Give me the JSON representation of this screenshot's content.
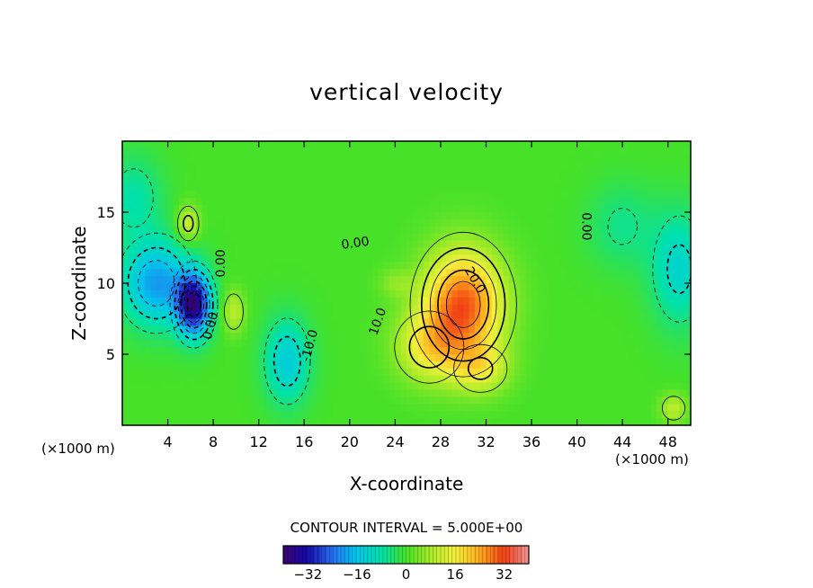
{
  "chart_data": {
    "type": "heatmap",
    "title": "vertical velocity",
    "xlabel": "X-coordinate",
    "ylabel": "Z-coordinate",
    "x_unit_left": "(×1000 m)",
    "x_unit_right": "(×1000 m)",
    "xlim": [
      0,
      50
    ],
    "ylim": [
      0,
      20
    ],
    "x_ticks": [
      4,
      8,
      12,
      16,
      20,
      24,
      28,
      32,
      36,
      40,
      44,
      48
    ],
    "y_ticks": [
      5,
      10,
      15
    ],
    "contour_interval_label": "CONTOUR INTERVAL = 5.000E+00",
    "colorbar": {
      "range": [
        -40,
        40
      ],
      "ticks": [
        -32,
        -16,
        0,
        16,
        32
      ],
      "tick_labels": [
        "−32",
        "−16",
        "0",
        "16",
        "32"
      ]
    },
    "contour_labels": [
      {
        "text": "0.00",
        "x": 20.5,
        "y": 12.8,
        "rot": -8
      },
      {
        "text": "0.00",
        "x": 8.7,
        "y": 11.4,
        "rot": -90
      },
      {
        "text": "0.00",
        "x": 40.8,
        "y": 14.0,
        "rot": 90
      },
      {
        "text": "20.0",
        "x": 31.0,
        "y": 10.2,
        "rot": 60
      },
      {
        "text": "10.0",
        "x": 22.5,
        "y": 7.3,
        "rot": -70
      },
      {
        "text": "-10.0",
        "x": 16.5,
        "y": 5.6,
        "rot": -75
      },
      {
        "text": "0.00",
        "x": 7.8,
        "y": 7.0,
        "rot": -75
      }
    ],
    "features": [
      {
        "x": 30.0,
        "y": 8.5,
        "value": 30,
        "sx": 3.5,
        "sy": 3.8
      },
      {
        "x": 27.0,
        "y": 5.5,
        "value": 14,
        "sx": 3.0,
        "sy": 2.5
      },
      {
        "x": 31.5,
        "y": 4.0,
        "value": 12,
        "sx": 2.5,
        "sy": 1.8
      },
      {
        "x": 6.3,
        "y": 8.5,
        "value": -35,
        "sx": 1.5,
        "sy": 2.2
      },
      {
        "x": 3.0,
        "y": 10.0,
        "value": -20,
        "sx": 3.0,
        "sy": 3.0
      },
      {
        "x": 14.5,
        "y": 4.5,
        "value": -14,
        "sx": 2.0,
        "sy": 3.0
      },
      {
        "x": 49.0,
        "y": 11.0,
        "value": -12,
        "sx": 2.5,
        "sy": 4.0
      },
      {
        "x": 5.8,
        "y": 14.2,
        "value": 12,
        "sx": 1.0,
        "sy": 1.3
      },
      {
        "x": 9.8,
        "y": 8.0,
        "value": 10,
        "sx": 1.0,
        "sy": 1.5
      },
      {
        "x": 48.5,
        "y": 1.2,
        "value": 10,
        "sx": 1.2,
        "sy": 1.0
      },
      {
        "x": 1.0,
        "y": 16.0,
        "value": -8,
        "sx": 2.5,
        "sy": 3.0
      },
      {
        "x": 44.0,
        "y": 14.0,
        "value": -6,
        "sx": 3.0,
        "sy": 3.0
      },
      {
        "x": 24.0,
        "y": 10.0,
        "value": 5,
        "sx": 1.5,
        "sy": 1.0
      }
    ]
  }
}
